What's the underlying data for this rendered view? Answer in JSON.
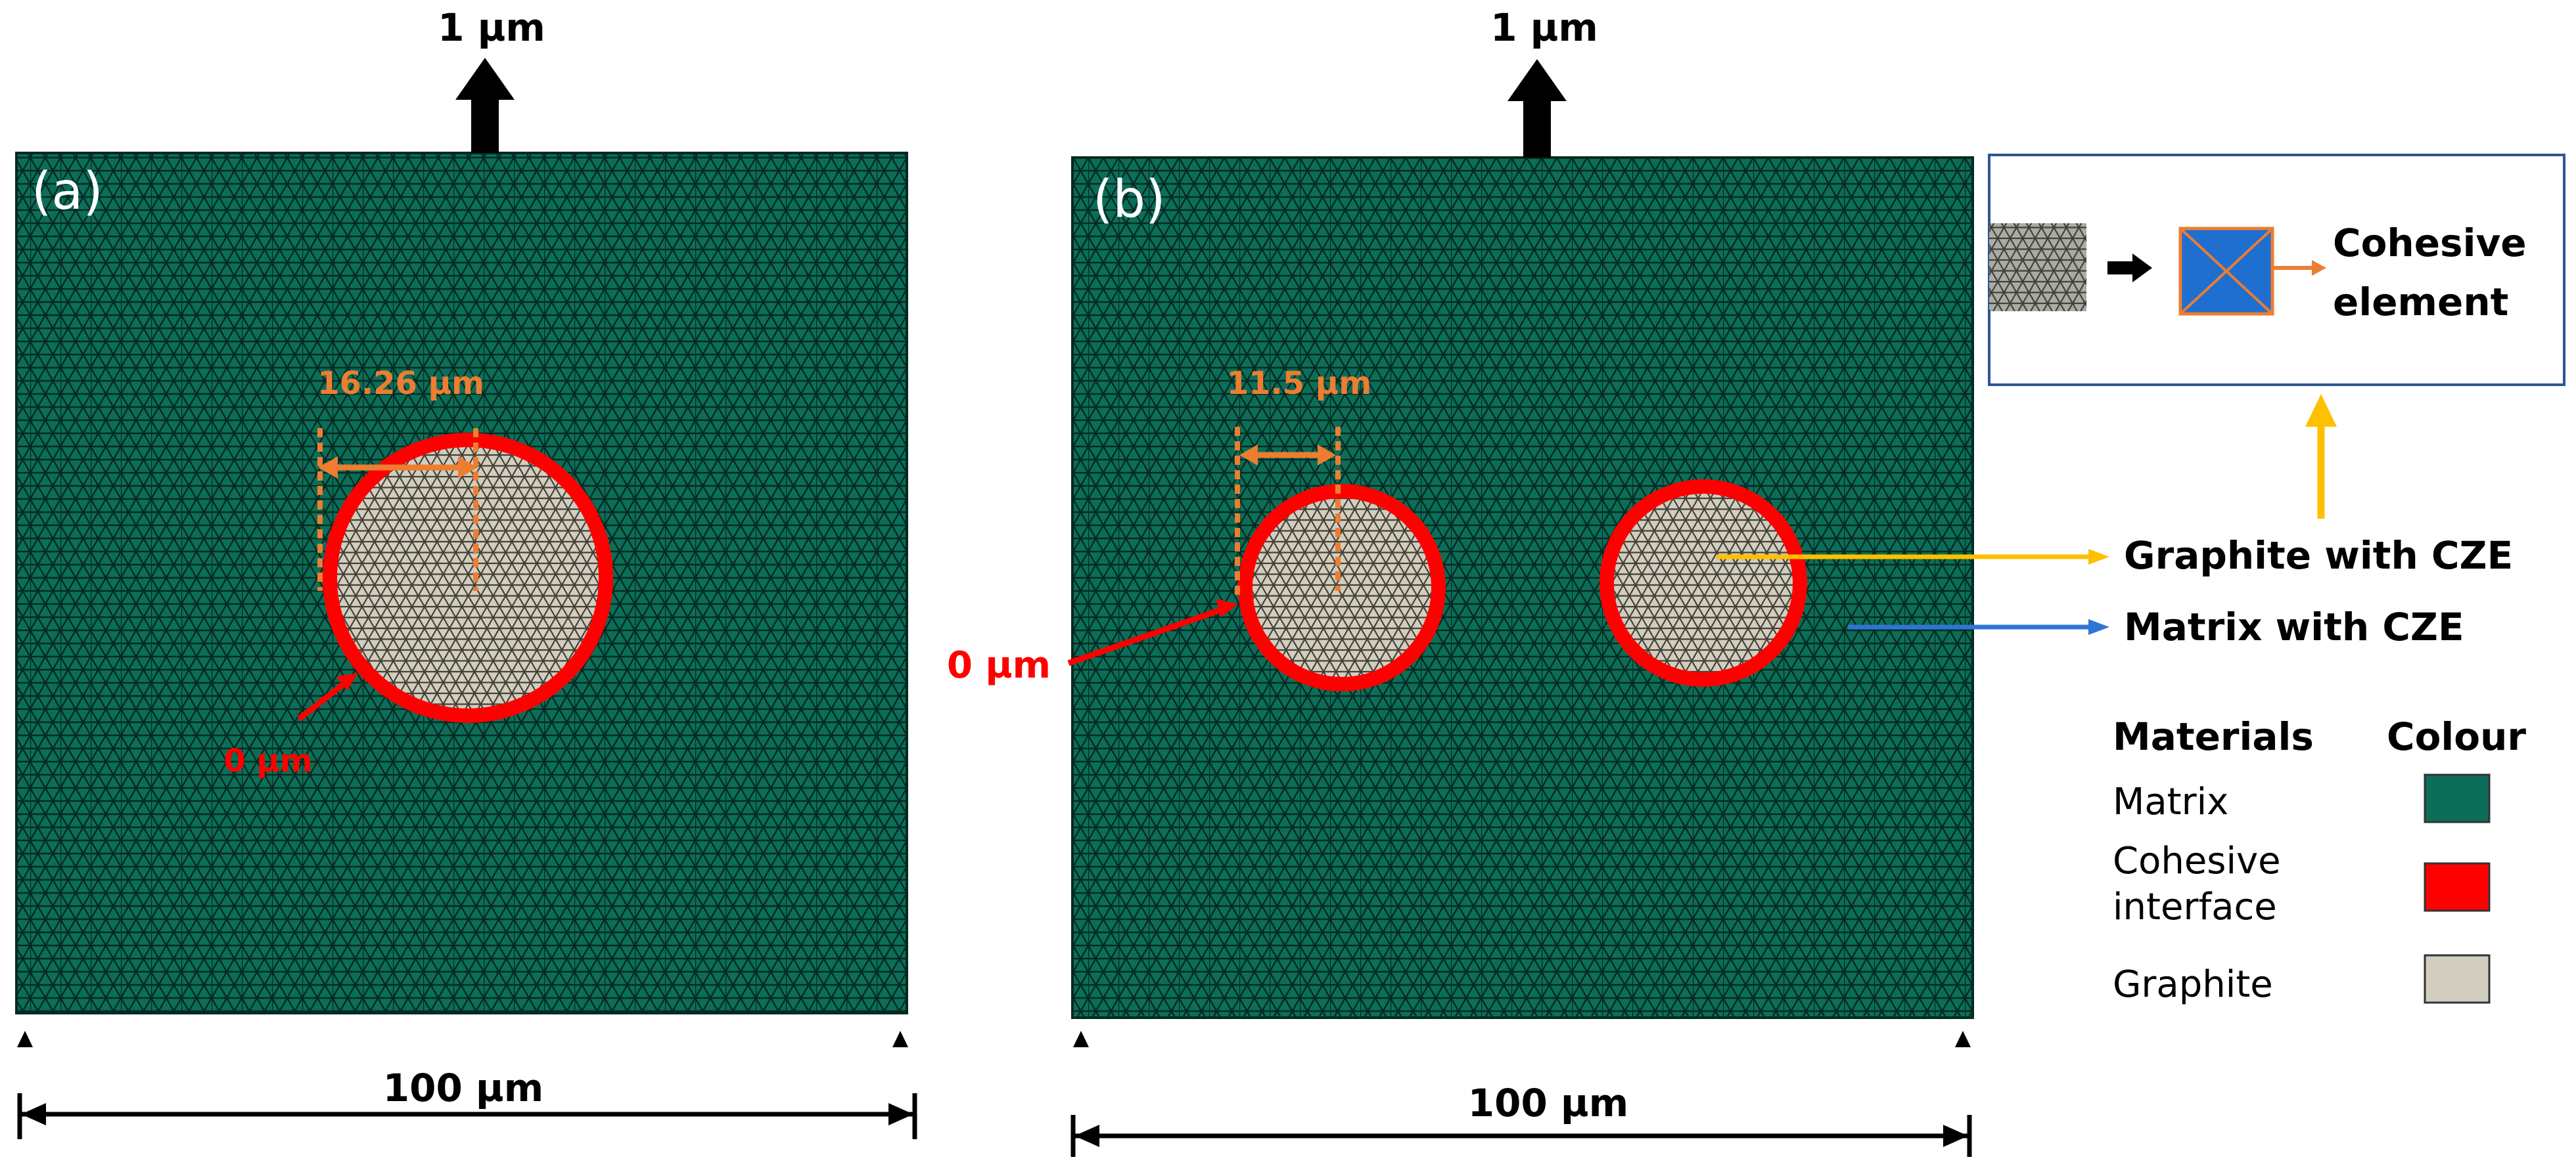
{
  "figure": {
    "colors": {
      "matrix": "#0b6e58",
      "mesh_line": "#052a22",
      "graphite": "#d1cdbf",
      "cohesive": "#ff0000",
      "dimension": "#ed7d31",
      "arrow_yellow": "#ffc000",
      "arrow_blue": "#2e75d6",
      "box_blue": "#1f6fd1",
      "inset_border": "#2f5597"
    },
    "panel_a": {
      "label": "(a)",
      "load_label": "1 µm",
      "width_label": "100 µm",
      "gap_label": "16.26 µm",
      "origin_label": "0 µm"
    },
    "panel_b": {
      "label": "(b)",
      "load_label": "1 µm",
      "width_label": "100 µm",
      "gap_label": "11.5 µm",
      "origin_label": "0 µm"
    },
    "inset": {
      "label_line1": "Cohesive",
      "label_line2": "element"
    },
    "callouts": {
      "graphite_cze": "Graphite with CZE",
      "matrix_cze": "Matrix with CZE"
    },
    "legend": {
      "header_materials": "Materials",
      "header_colour": "Colour",
      "rows": [
        {
          "line1": "Matrix",
          "line2": "",
          "color": "#0b6e58"
        },
        {
          "line1": "Cohesive",
          "line2": "interface",
          "color": "#ff0000"
        },
        {
          "line1": "Graphite",
          "line2": "",
          "color": "#d1cdbf"
        }
      ]
    }
  }
}
